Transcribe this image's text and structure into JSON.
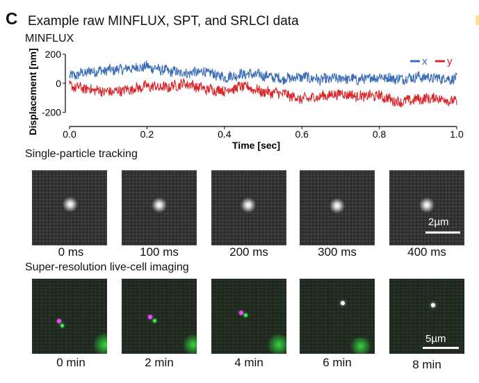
{
  "panel": {
    "letter": "C",
    "title": "Example raw MINFLUX, SPT, and SRLCI data"
  },
  "minflux": {
    "label": "MINFLUX",
    "chart_data": {
      "type": "line",
      "xlabel": "Time [sec]",
      "ylabel": "Displacement [nm]",
      "xlim": [
        0.0,
        1.0
      ],
      "ylim": [
        -240,
        200
      ],
      "xticks": [
        "0.0",
        "0.2",
        "0.4",
        "0.6",
        "0.8",
        "1.0"
      ],
      "yticks": [
        "200",
        "0",
        "-200"
      ],
      "legend_position": "top-right",
      "series": [
        {
          "name": "x",
          "color": "#3a6cb5",
          "x": [
            0.0,
            0.05,
            0.1,
            0.15,
            0.2,
            0.25,
            0.3,
            0.35,
            0.4,
            0.45,
            0.5,
            0.55,
            0.6,
            0.65,
            0.7,
            0.75,
            0.8,
            0.85,
            0.9,
            0.95,
            1.0
          ],
          "values": [
            45,
            80,
            90,
            100,
            115,
            85,
            70,
            80,
            40,
            65,
            55,
            30,
            45,
            25,
            35,
            25,
            45,
            30,
            45,
            35,
            30
          ]
        },
        {
          "name": "y",
          "color": "#d8262a",
          "x": [
            0.0,
            0.05,
            0.1,
            0.15,
            0.2,
            0.25,
            0.3,
            0.35,
            0.4,
            0.45,
            0.5,
            0.55,
            0.6,
            0.65,
            0.7,
            0.75,
            0.8,
            0.85,
            0.9,
            0.95,
            1.0
          ],
          "values": [
            -20,
            -40,
            -60,
            -45,
            -20,
            -30,
            0,
            -40,
            -50,
            -20,
            -60,
            -70,
            -110,
            -90,
            -70,
            -90,
            -85,
            -130,
            -110,
            -100,
            -130
          ]
        }
      ]
    }
  },
  "spt": {
    "label": "Single-particle tracking",
    "frames": [
      "0 ms",
      "100 ms",
      "200 ms",
      "300 ms",
      "400 ms"
    ],
    "scalebar": "2µm"
  },
  "srlci": {
    "label": "Super-resolution live-cell imaging",
    "frames": [
      "0 min",
      "2 min",
      "4 min",
      "6 min",
      "8 min"
    ],
    "scalebar": "5µm"
  }
}
